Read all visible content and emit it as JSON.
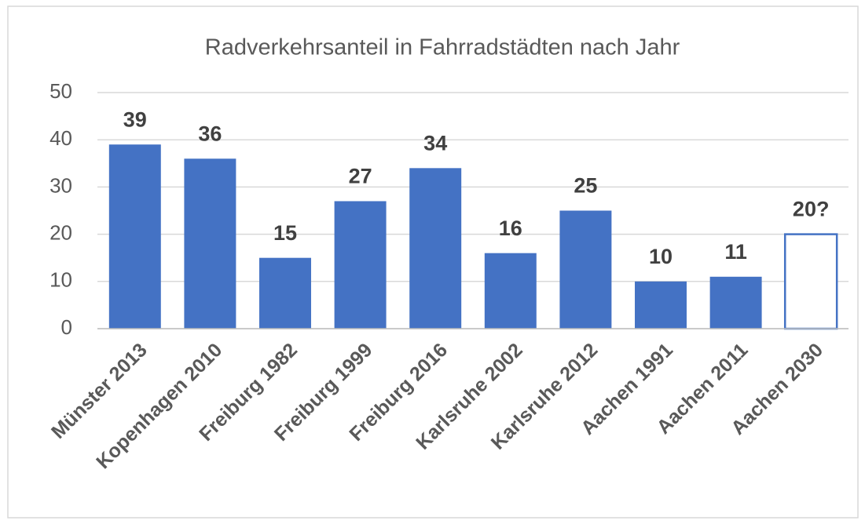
{
  "chart_data": {
    "type": "bar",
    "title": "Radverkehrsanteil in Fahrradstädten nach Jahr",
    "categories": [
      "Münster 2013",
      "Kopenhagen 2010",
      "Freiburg 1982",
      "Freiburg 1999",
      "Freiburg 2016",
      "Karlsruhe 2002",
      "Karlsruhe 2012",
      "Aachen 1991",
      "Aachen 2011",
      "Aachen 2030"
    ],
    "values": [
      39,
      36,
      15,
      27,
      34,
      16,
      25,
      10,
      11,
      20
    ],
    "value_labels": [
      "39",
      "36",
      "15",
      "27",
      "34",
      "16",
      "25",
      "10",
      "11",
      "20?"
    ],
    "bar_styles": [
      "filled",
      "filled",
      "filled",
      "filled",
      "filled",
      "filled",
      "filled",
      "filled",
      "filled",
      "outline"
    ],
    "color": "#4472c4",
    "ylim": [
      0,
      50
    ],
    "yticks": [
      0,
      10,
      20,
      30,
      40,
      50
    ],
    "grid": true
  }
}
